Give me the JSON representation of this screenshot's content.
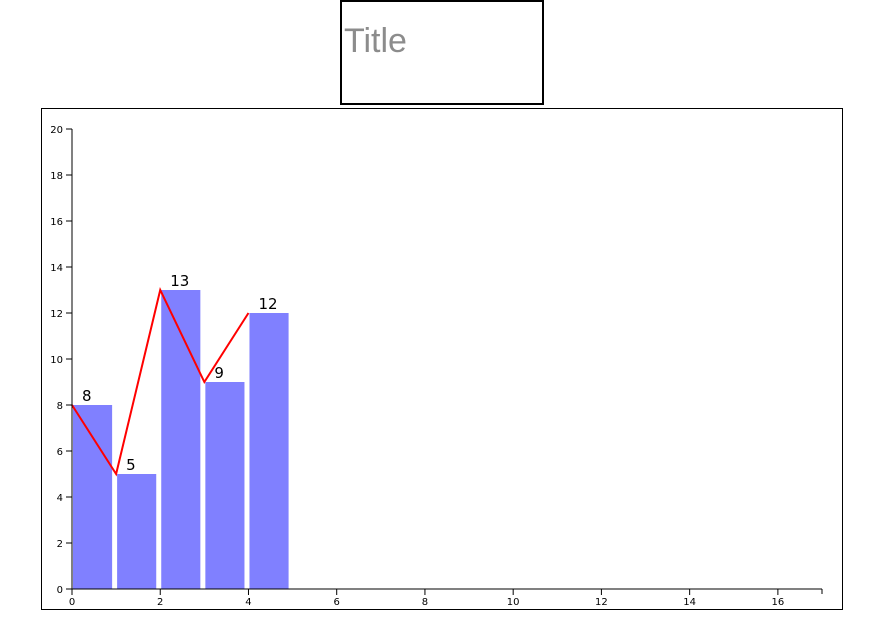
{
  "title": "Title",
  "colors": {
    "bar": "#8080ff",
    "line": "#ff0000",
    "axis": "#000000"
  },
  "chart_data": {
    "type": "bar",
    "title": "Title",
    "xlabel": "",
    "ylabel": "",
    "x": [
      0,
      1,
      2,
      3,
      4
    ],
    "values": [
      8,
      5,
      13,
      9,
      12
    ],
    "line_values": [
      8,
      5,
      13,
      9,
      12
    ],
    "data_labels": [
      "8",
      "5",
      "13",
      "9",
      "12"
    ],
    "xlim": [
      0,
      17
    ],
    "ylim": [
      0,
      20
    ],
    "x_ticks": [
      0,
      2,
      4,
      6,
      8,
      10,
      12,
      14,
      16
    ],
    "y_ticks": [
      0,
      2,
      4,
      6,
      8,
      10,
      12,
      14,
      16,
      18,
      20
    ],
    "grid": false,
    "legend": "none"
  }
}
